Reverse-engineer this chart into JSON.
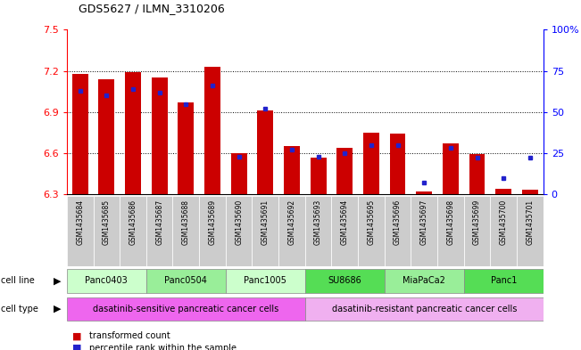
{
  "title": "GDS5627 / ILMN_3310206",
  "samples": [
    "GSM1435684",
    "GSM1435685",
    "GSM1435686",
    "GSM1435687",
    "GSM1435688",
    "GSM1435689",
    "GSM1435690",
    "GSM1435691",
    "GSM1435692",
    "GSM1435693",
    "GSM1435694",
    "GSM1435695",
    "GSM1435696",
    "GSM1435697",
    "GSM1435698",
    "GSM1435699",
    "GSM1435700",
    "GSM1435701"
  ],
  "red_values": [
    7.18,
    7.14,
    7.19,
    7.15,
    6.97,
    7.23,
    6.6,
    6.91,
    6.65,
    6.57,
    6.64,
    6.75,
    6.74,
    6.32,
    6.67,
    6.59,
    6.34,
    6.33
  ],
  "blue_pct": [
    63,
    60,
    64,
    62,
    55,
    66,
    23,
    52,
    27,
    23,
    25,
    30,
    30,
    7,
    28,
    22,
    10,
    22
  ],
  "y_min": 6.3,
  "y_max": 7.5,
  "y_ticks": [
    6.3,
    6.6,
    6.9,
    7.2,
    7.5
  ],
  "y2_ticks": [
    0,
    25,
    50,
    75,
    100
  ],
  "red_color": "#cc0000",
  "blue_color": "#2222cc",
  "cell_lines": [
    {
      "label": "Panc0403",
      "start": 0,
      "end": 2,
      "color": "#ccffcc"
    },
    {
      "label": "Panc0504",
      "start": 3,
      "end": 5,
      "color": "#99ee99"
    },
    {
      "label": "Panc1005",
      "start": 6,
      "end": 8,
      "color": "#ccffcc"
    },
    {
      "label": "SU8686",
      "start": 9,
      "end": 11,
      "color": "#55dd55"
    },
    {
      "label": "MiaPaCa2",
      "start": 12,
      "end": 14,
      "color": "#99ee99"
    },
    {
      "label": "Panc1",
      "start": 15,
      "end": 17,
      "color": "#55dd55"
    }
  ],
  "cell_types": [
    {
      "label": "dasatinib-sensitive pancreatic cancer cells",
      "start": 0,
      "end": 8,
      "color": "#ee66ee"
    },
    {
      "label": "dasatinib-resistant pancreatic cancer cells",
      "start": 9,
      "end": 17,
      "color": "#f0b0f0"
    }
  ],
  "legend_red": "transformed count",
  "legend_blue": "percentile rank within the sample",
  "sample_bg": "#cccccc",
  "bar_width": 0.6
}
